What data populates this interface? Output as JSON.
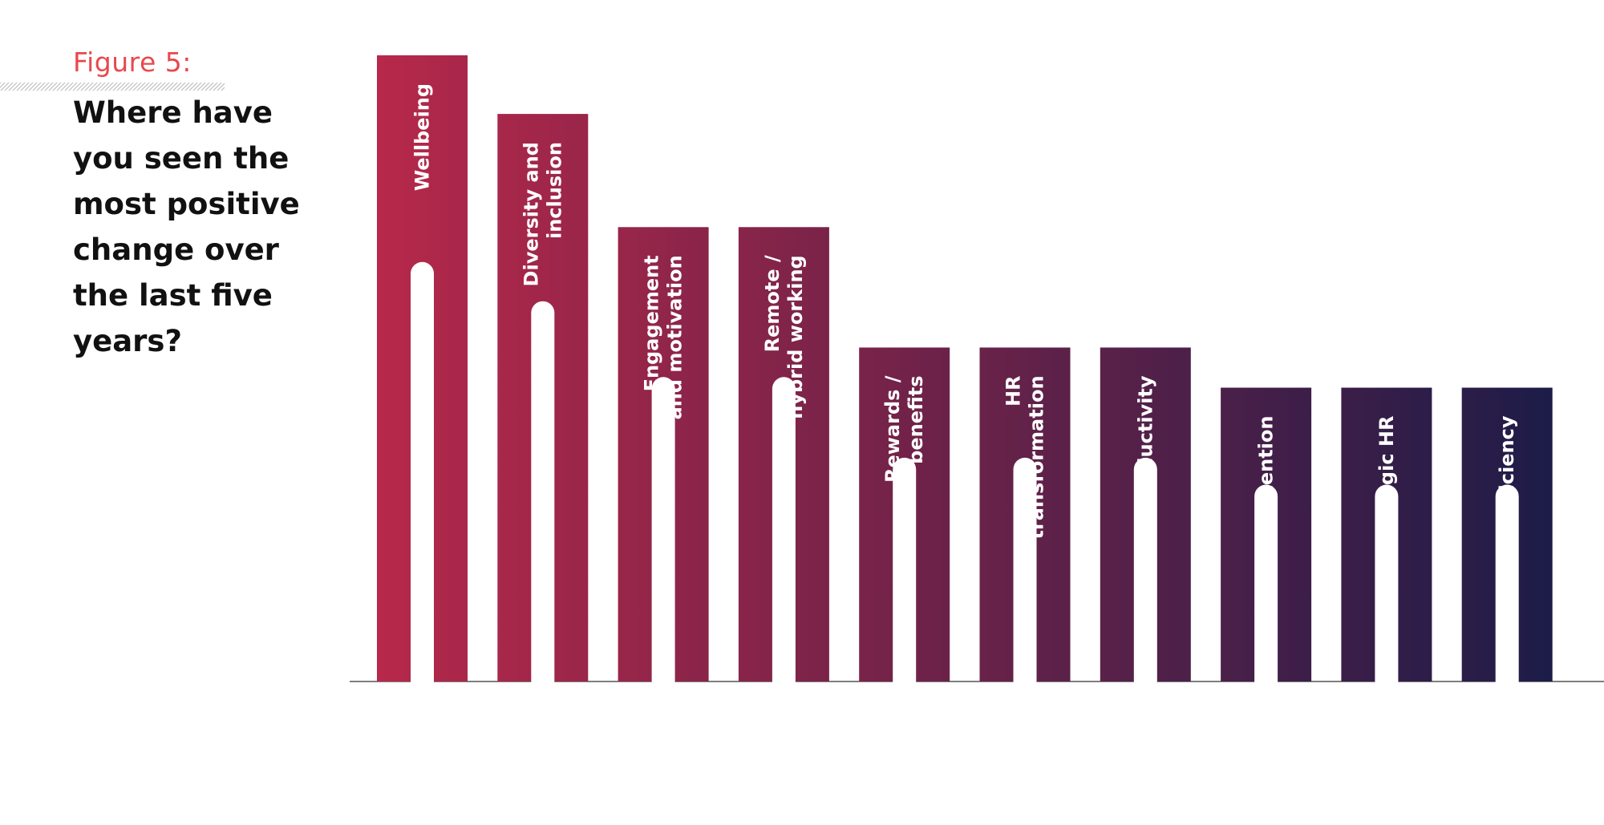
{
  "figure": {
    "label": "Figure 5:",
    "question": "Where have you seen the most positive change over the last five years?"
  },
  "chart_data": {
    "type": "bar",
    "categories": [
      "Wellbeing",
      "Diversity and inclusion",
      "Engagement and motivation",
      "Remote / hybrid working",
      "Rewards / benefits",
      "HR transformation",
      "Productivity",
      "Retention",
      "Strategic HR",
      "HR efficiency"
    ],
    "category_lines": [
      [
        "Wellbeing"
      ],
      [
        "Diversity and",
        "inclusion"
      ],
      [
        "Engagement",
        "and motivation"
      ],
      [
        "Remote /",
        "hybrid working"
      ],
      [
        "Rewards /",
        "benefits"
      ],
      [
        "HR",
        "transformation"
      ],
      [
        "Productivity"
      ],
      [
        "Retention"
      ],
      [
        "Strategic HR"
      ],
      [
        "HR efficiency"
      ]
    ],
    "values": [
      780,
      707,
      566,
      566,
      416,
      416,
      416,
      366,
      366,
      366
    ],
    "ylim": [
      0,
      780
    ],
    "title": "",
    "xlabel": "",
    "ylabel": "",
    "grid": false,
    "legend": "none",
    "colors": {
      "gradient_start": "#b8284a",
      "gradient_end": "#1c1c48",
      "axis": "#555555",
      "track": "#ffffff"
    }
  }
}
